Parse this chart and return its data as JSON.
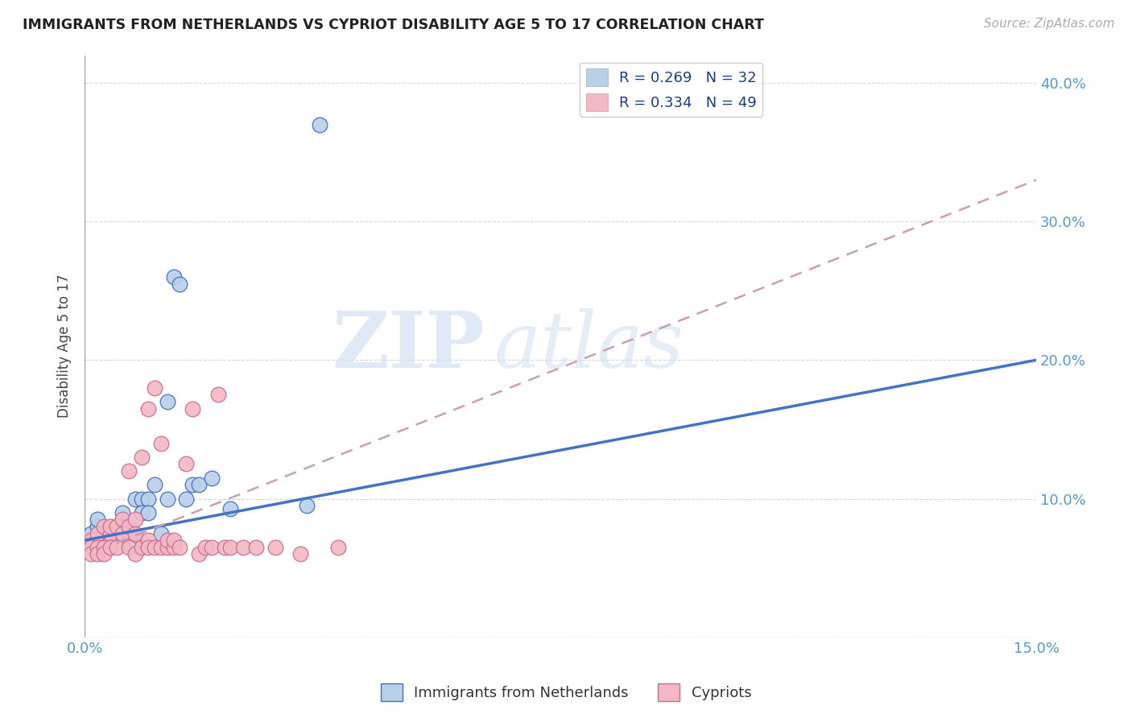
{
  "title": "IMMIGRANTS FROM NETHERLANDS VS CYPRIOT DISABILITY AGE 5 TO 17 CORRELATION CHART",
  "source": "Source: ZipAtlas.com",
  "ylabel_label": "Disability Age 5 to 17",
  "xlim": [
    0.0,
    0.15
  ],
  "ylim": [
    0.0,
    0.42
  ],
  "legend_R1": "0.269",
  "legend_N1": "32",
  "legend_R2": "0.334",
  "legend_N2": "49",
  "color_blue": "#b8d0e8",
  "color_pink": "#f2b8c6",
  "line_blue": "#4472c4",
  "line_pink": "#cc7090",
  "line_pink_dashed": "#c8a0b0",
  "watermark_zip": "ZIP",
  "watermark_atlas": "atlas",
  "bg_color": "#ffffff",
  "grid_color": "#d8d8d8",
  "tick_color": "#5599cc",
  "scatter_blue_x": [
    0.001,
    0.002,
    0.002,
    0.003,
    0.003,
    0.004,
    0.004,
    0.005,
    0.005,
    0.006,
    0.006,
    0.007,
    0.007,
    0.008,
    0.008,
    0.009,
    0.009,
    0.01,
    0.01,
    0.011,
    0.012,
    0.013,
    0.013,
    0.014,
    0.015,
    0.016,
    0.017,
    0.018,
    0.02,
    0.023,
    0.035,
    0.037
  ],
  "scatter_blue_y": [
    0.075,
    0.08,
    0.085,
    0.07,
    0.075,
    0.068,
    0.072,
    0.075,
    0.08,
    0.09,
    0.075,
    0.068,
    0.075,
    0.07,
    0.1,
    0.1,
    0.09,
    0.1,
    0.09,
    0.11,
    0.075,
    0.1,
    0.17,
    0.26,
    0.255,
    0.1,
    0.11,
    0.11,
    0.115,
    0.093,
    0.095,
    0.37
  ],
  "scatter_pink_x": [
    0.001,
    0.001,
    0.001,
    0.002,
    0.002,
    0.002,
    0.003,
    0.003,
    0.003,
    0.004,
    0.004,
    0.004,
    0.005,
    0.005,
    0.006,
    0.006,
    0.007,
    0.007,
    0.007,
    0.008,
    0.008,
    0.008,
    0.009,
    0.009,
    0.01,
    0.01,
    0.01,
    0.011,
    0.011,
    0.012,
    0.012,
    0.013,
    0.013,
    0.014,
    0.014,
    0.015,
    0.016,
    0.017,
    0.018,
    0.019,
    0.02,
    0.021,
    0.022,
    0.023,
    0.025,
    0.027,
    0.03,
    0.034,
    0.04
  ],
  "scatter_pink_y": [
    0.07,
    0.065,
    0.06,
    0.075,
    0.065,
    0.06,
    0.065,
    0.08,
    0.06,
    0.075,
    0.065,
    0.08,
    0.065,
    0.08,
    0.075,
    0.085,
    0.065,
    0.08,
    0.12,
    0.06,
    0.075,
    0.085,
    0.065,
    0.13,
    0.07,
    0.165,
    0.065,
    0.065,
    0.18,
    0.065,
    0.14,
    0.065,
    0.07,
    0.065,
    0.07,
    0.065,
    0.125,
    0.165,
    0.06,
    0.065,
    0.065,
    0.175,
    0.065,
    0.065,
    0.065,
    0.065,
    0.065,
    0.06,
    0.065
  ],
  "blue_line_x0": 0.0,
  "blue_line_y0": 0.07,
  "blue_line_x1": 0.15,
  "blue_line_y1": 0.2,
  "pink_line_x0": 0.005,
  "pink_line_y0": 0.068,
  "pink_line_x1": 0.15,
  "pink_line_y1": 0.33
}
